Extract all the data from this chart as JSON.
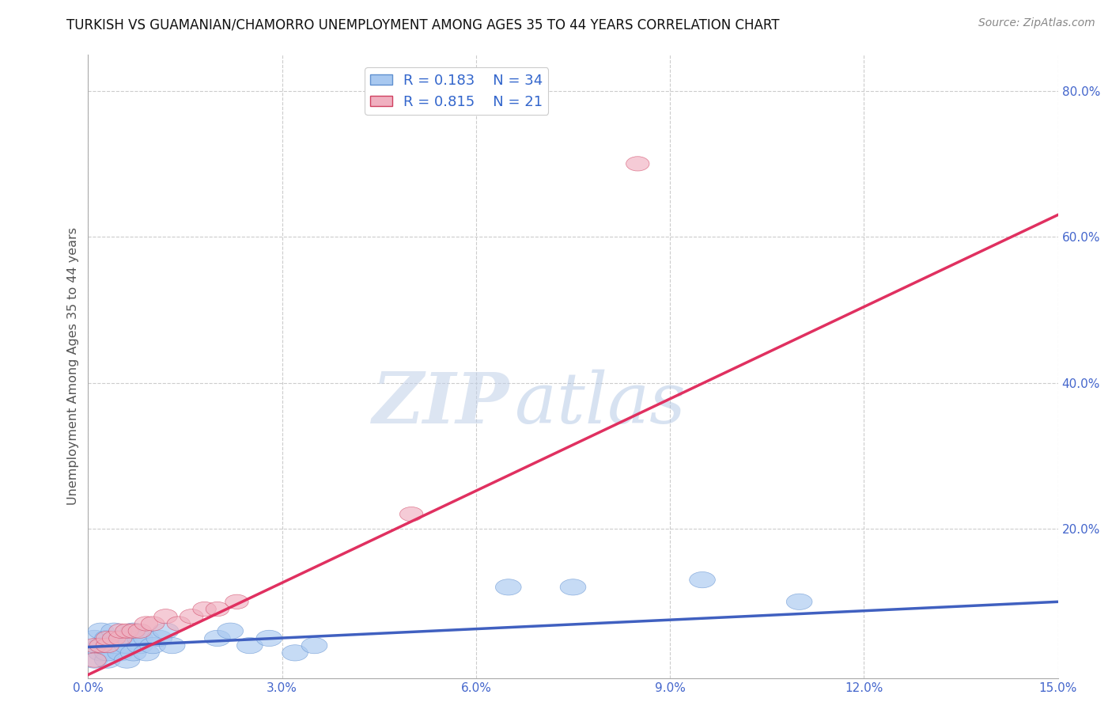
{
  "title": "TURKISH VS GUAMANIAN/CHAMORRO UNEMPLOYMENT AMONG AGES 35 TO 44 YEARS CORRELATION CHART",
  "source": "Source: ZipAtlas.com",
  "ylabel": "Unemployment Among Ages 35 to 44 years",
  "xlim": [
    0.0,
    0.15
  ],
  "ylim": [
    -0.005,
    0.85
  ],
  "xticks": [
    0.0,
    0.03,
    0.06,
    0.09,
    0.12,
    0.15
  ],
  "xticklabels": [
    "0.0%",
    "3.0%",
    "6.0%",
    "9.0%",
    "12.0%",
    "15.0%"
  ],
  "yticks": [
    0.2,
    0.4,
    0.6,
    0.8
  ],
  "yticklabels": [
    "20.0%",
    "40.0%",
    "60.0%",
    "80.0%"
  ],
  "grid_color": "#cccccc",
  "background_color": "#ffffff",
  "watermark_zip": "ZIP",
  "watermark_atlas": "atlas",
  "turks_color": "#a8c8f0",
  "turks_edge_color": "#6090d0",
  "guam_color": "#f0b0c0",
  "guam_edge_color": "#d04060",
  "turks_line_color": "#4060c0",
  "guam_line_color": "#e03060",
  "R_turks": 0.183,
  "N_turks": 34,
  "R_guam": 0.815,
  "N_guam": 21,
  "turks_x": [
    0.001,
    0.001,
    0.002,
    0.002,
    0.002,
    0.003,
    0.003,
    0.003,
    0.004,
    0.004,
    0.005,
    0.005,
    0.006,
    0.006,
    0.007,
    0.007,
    0.008,
    0.008,
    0.009,
    0.009,
    0.01,
    0.011,
    0.012,
    0.013,
    0.02,
    0.022,
    0.025,
    0.028,
    0.032,
    0.035,
    0.065,
    0.075,
    0.095,
    0.11
  ],
  "turks_y": [
    0.02,
    0.05,
    0.03,
    0.06,
    0.04,
    0.02,
    0.05,
    0.03,
    0.04,
    0.06,
    0.03,
    0.05,
    0.02,
    0.04,
    0.03,
    0.06,
    0.04,
    0.05,
    0.03,
    0.05,
    0.04,
    0.05,
    0.06,
    0.04,
    0.05,
    0.06,
    0.04,
    0.05,
    0.03,
    0.04,
    0.12,
    0.12,
    0.13,
    0.1
  ],
  "guam_x": [
    0.001,
    0.001,
    0.002,
    0.003,
    0.003,
    0.004,
    0.005,
    0.005,
    0.006,
    0.007,
    0.008,
    0.009,
    0.01,
    0.012,
    0.014,
    0.016,
    0.018,
    0.02,
    0.023,
    0.05,
    0.085
  ],
  "guam_y": [
    0.02,
    0.04,
    0.04,
    0.04,
    0.05,
    0.05,
    0.05,
    0.06,
    0.06,
    0.06,
    0.06,
    0.07,
    0.07,
    0.08,
    0.07,
    0.08,
    0.09,
    0.09,
    0.1,
    0.22,
    0.7
  ],
  "turks_line_x0": 0.0,
  "turks_line_y0": 0.038,
  "turks_line_x1": 0.15,
  "turks_line_y1": 0.1,
  "guam_line_x0": 0.0,
  "guam_line_y0": 0.0,
  "guam_line_x1": 0.15,
  "guam_line_y1": 0.63
}
